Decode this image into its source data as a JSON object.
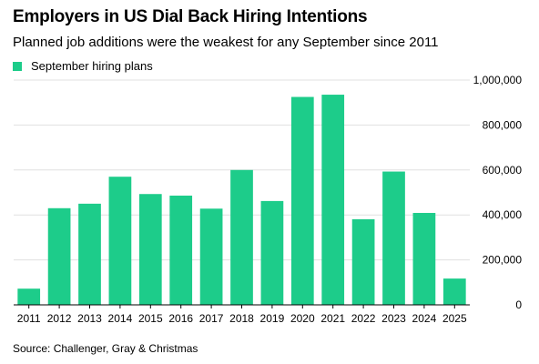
{
  "title": "Employers in US Dial Back Hiring Intentions",
  "subtitle": "Planned job additions were the weakest for any September since 2011",
  "source": "Source: Challenger, Gray & Christmas",
  "colors": {
    "bar": "#1dcc8a",
    "grid": "#e0e0e0",
    "axis": "#000000"
  },
  "chart_data": {
    "type": "bar",
    "categories": [
      "2011",
      "2012",
      "2013",
      "2014",
      "2015",
      "2016",
      "2017",
      "2018",
      "2019",
      "2020",
      "2021",
      "2022",
      "2023",
      "2024",
      "2025"
    ],
    "series": [
      {
        "name": "September hiring plans",
        "values": [
          72000,
          430000,
          450000,
          570000,
          493000,
          486000,
          428000,
          600000,
          462000,
          925000,
          935000,
          381000,
          593000,
          409000,
          117000
        ]
      }
    ],
    "y_ticks": [
      0,
      200000,
      400000,
      600000,
      800000,
      1000000
    ],
    "y_tick_labels": [
      "0",
      "200,000",
      "400,000",
      "600,000",
      "800,000",
      "1,000,000"
    ],
    "ylim": [
      0,
      1000000
    ],
    "grid": true,
    "y_axis_side": "right",
    "legend_position": "top-left"
  }
}
